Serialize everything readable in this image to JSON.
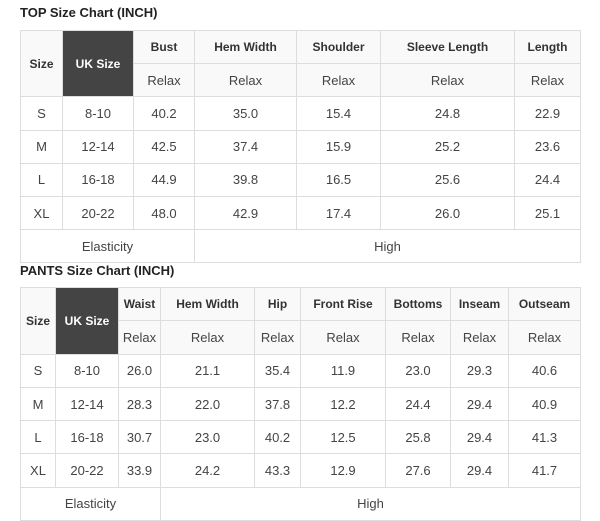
{
  "tables": [
    {
      "title": "TOP Size Chart (INCH)",
      "size_label": "Size",
      "uk_label": "UK Size",
      "columns": [
        "Bust",
        "Hem Width",
        "Shoulder",
        "Sleeve Length",
        "Length"
      ],
      "subheader": "Relax",
      "rows": [
        {
          "size": "S",
          "uk": "8-10",
          "values": [
            "40.2",
            "35.0",
            "15.4",
            "24.8",
            "22.9"
          ]
        },
        {
          "size": "M",
          "uk": "12-14",
          "values": [
            "42.5",
            "37.4",
            "15.9",
            "25.2",
            "23.6"
          ]
        },
        {
          "size": "L",
          "uk": "16-18",
          "values": [
            "44.9",
            "39.8",
            "16.5",
            "25.6",
            "24.4"
          ]
        },
        {
          "size": "XL",
          "uk": "20-22",
          "values": [
            "48.0",
            "42.9",
            "17.4",
            "26.0",
            "25.1"
          ]
        }
      ],
      "elasticity_label": "Elasticity",
      "elasticity_value": "High"
    },
    {
      "title": "PANTS Size Chart (INCH)",
      "size_label": "Size",
      "uk_label": "UK Size",
      "columns": [
        "Waist",
        "Hem Width",
        "Hip",
        "Front Rise",
        "Bottoms",
        "Inseam",
        "Outseam"
      ],
      "subheader": "Relax",
      "rows": [
        {
          "size": "S",
          "uk": "8-10",
          "values": [
            "26.0",
            "21.1",
            "35.4",
            "11.9",
            "23.0",
            "29.3",
            "40.6"
          ]
        },
        {
          "size": "M",
          "uk": "12-14",
          "values": [
            "28.3",
            "22.0",
            "37.8",
            "12.2",
            "24.4",
            "29.4",
            "40.9"
          ]
        },
        {
          "size": "L",
          "uk": "16-18",
          "values": [
            "30.7",
            "23.0",
            "40.2",
            "12.5",
            "25.8",
            "29.4",
            "41.3"
          ]
        },
        {
          "size": "XL",
          "uk": "20-22",
          "values": [
            "33.9",
            "24.2",
            "43.3",
            "12.9",
            "27.6",
            "29.4",
            "41.7"
          ]
        }
      ],
      "elasticity_label": "Elasticity",
      "elasticity_value": "High"
    }
  ]
}
